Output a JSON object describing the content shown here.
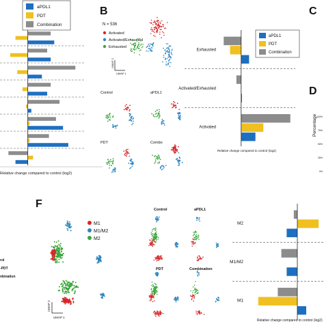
{
  "panels": [
    {
      "letter": "B"
    },
    {
      "letter": "C"
    },
    {
      "letter": "D"
    },
    {
      "letter": "F"
    }
  ],
  "colors": {
    "apdl1": "#1f6fc0",
    "pdt": "#f0c020",
    "combination": "#8c8c8c",
    "activated": "#d62728",
    "activated_exhausted": "#2e86c1",
    "exhausted": "#3aa63a",
    "m1": "#d62728",
    "m1m2": "#2e86c1",
    "m2": "#3aa63a"
  },
  "legend_treatment": [
    "aPDL1",
    "PDT",
    "Combination"
  ],
  "panel_b": {
    "n_label": "N = 536",
    "legend": [
      "Activated",
      "Activated/Exhausted",
      "Exhausted"
    ],
    "umap_x": "UMAP 1",
    "umap_y": "UMAP 2",
    "facets": [
      "Control",
      "aPDL1",
      "PDT",
      "Combo"
    ]
  },
  "panel_d": {
    "ylabel": "Percentage",
    "ticks": [
      "100%",
      "75%",
      "50%",
      "25%",
      "0%"
    ]
  },
  "panel_f": {
    "legend": [
      "M1",
      "M1/M2",
      "M2"
    ],
    "umap_x": "UMAP 1",
    "umap_y": "UMAP 2",
    "facets": [
      "Control",
      "aPDL1",
      "PDT",
      "Combination"
    ]
  },
  "left_partial_labels": [
    "rol",
    "-PDT",
    "nbination"
  ],
  "chart_data": [
    {
      "type": "bar",
      "orientation": "horizontal",
      "xlabel": "Relative change compared to control (log2)",
      "series": [
        {
          "name": "aPDL1",
          "values": [
            1.5,
            1.3,
            0.8,
            1.1,
            0.2,
            2.0,
            2.3,
            -0.7
          ]
        },
        {
          "name": "PDT",
          "values": [
            -0.7,
            -1.0,
            -0.6,
            -0.3,
            -0.1,
            0.1,
            0.1,
            0.3
          ]
        },
        {
          "name": "Combination",
          "values": [
            1.3,
            1.1,
            2.7,
            1.3,
            1.8,
            1.6,
            1.2,
            -1.1
          ]
        }
      ],
      "xlim": [
        -1.5,
        3.0
      ]
    },
    {
      "type": "bar",
      "orientation": "horizontal",
      "categories": [
        "Exhausted",
        "Activated/Exhausted",
        "Activated"
      ],
      "xlabel": "Relative change compared to control (log2)",
      "series": [
        {
          "name": "aPDL1",
          "values": [
            0.5,
            0.05,
            0.9
          ]
        },
        {
          "name": "PDT",
          "values": [
            -0.7,
            0.0,
            1.4
          ]
        },
        {
          "name": "Combination",
          "values": [
            -1.1,
            -0.3,
            3.1
          ]
        }
      ],
      "xlim": [
        -1.5,
        3.5
      ]
    },
    {
      "type": "bar",
      "orientation": "horizontal",
      "categories": [
        "M2",
        "M1/M2",
        "M1"
      ],
      "xlabel": "Relative change compared to control (log2)",
      "series": [
        {
          "name": "aPDL1",
          "values": [
            -0.6,
            -0.6,
            0.5
          ]
        },
        {
          "name": "PDT",
          "values": [
            1.2,
            0.0,
            -2.2
          ]
        },
        {
          "name": "Combination",
          "values": [
            -0.2,
            -0.9,
            -1.1
          ]
        }
      ],
      "xlim": [
        -2.5,
        1.5
      ]
    }
  ]
}
